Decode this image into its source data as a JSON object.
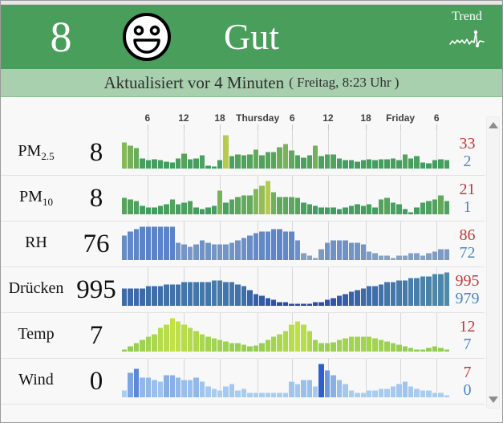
{
  "header": {
    "score": "8",
    "status": "Gut",
    "trend_label": "Trend",
    "bg_color": "#4a9e5c",
    "smiley_icon": "happy-face-icon",
    "trend_icon": "pulse-line-icon"
  },
  "update_bar": {
    "main": "Aktualisiert vor 4 Minuten",
    "detail": "( Freitag, 8:23 Uhr )",
    "bg_color": "#a8cfae"
  },
  "time_axis": {
    "labels": [
      "6",
      "12",
      "18",
      "Thursday",
      "6",
      "12",
      "18",
      "Friday",
      "6"
    ],
    "positions_pct": [
      8.0,
      19.0,
      30.0,
      41.5,
      52.0,
      62.9,
      74.4,
      84.9,
      95.9
    ]
  },
  "colors": {
    "max_text": "#bf3a3a",
    "min_text": "#4a86c6"
  },
  "rows": [
    {
      "key": "pm25",
      "label": "PM",
      "label_sub": "2.5",
      "value": "8",
      "max": "33",
      "min": "2",
      "color_low": "#3f9c60",
      "color_high": "#b6ca52",
      "color_gamma": 2,
      "vmin": 2,
      "vmax": 33,
      "values": [
        26,
        23,
        20,
        10,
        8,
        9,
        8,
        7,
        6,
        10,
        15,
        9,
        10,
        13,
        3,
        2,
        8,
        33,
        12,
        14,
        13,
        14,
        19,
        13,
        16,
        16,
        21,
        24,
        18,
        13,
        11,
        13,
        23,
        12,
        14,
        14,
        10,
        8,
        8,
        7,
        8,
        9,
        8,
        9,
        9,
        10,
        8,
        14,
        10,
        12,
        6,
        5,
        8,
        9,
        8
      ]
    },
    {
      "key": "pm10",
      "label": "PM",
      "label_sub": "10",
      "value": "8",
      "max": "21",
      "min": "1",
      "color_low": "#3f9c60",
      "color_high": "#b6ca52",
      "color_gamma": 2,
      "vmin": 1,
      "vmax": 21,
      "values": [
        10,
        9,
        8,
        5,
        4,
        4,
        5,
        6,
        9,
        6,
        7,
        8,
        4,
        3,
        4,
        5,
        15,
        7,
        9,
        11,
        12,
        12,
        16,
        18,
        21,
        14,
        11,
        11,
        11,
        10,
        7,
        6,
        5,
        4,
        4,
        4,
        3,
        4,
        5,
        6,
        5,
        6,
        4,
        9,
        10,
        7,
        6,
        3,
        1,
        4,
        7,
        8,
        9,
        12,
        8
      ]
    },
    {
      "key": "rh",
      "label": "RH",
      "label_sub": "",
      "value": "76",
      "max": "86",
      "min": "72",
      "color_low": "#8aa4c2",
      "color_high": "#5a83c8",
      "color_gamma": 1,
      "vmin": 72,
      "vmax": 86,
      "values": [
        82,
        84,
        85,
        86,
        86,
        86,
        86,
        86,
        86,
        79,
        78,
        77,
        78,
        80,
        79,
        78,
        78,
        78,
        79,
        80,
        81,
        82,
        83,
        84,
        84,
        85,
        85,
        84,
        84,
        80,
        74,
        73,
        72,
        76,
        79,
        80,
        80,
        80,
        79,
        79,
        78,
        75,
        74,
        73,
        73,
        72,
        73,
        73,
        74,
        74,
        73,
        74,
        75,
        76,
        76
      ]
    },
    {
      "key": "druecken",
      "label": "Drücken",
      "label_sub": "",
      "value": "995",
      "max": "995",
      "min": "979",
      "color_low": "#2a4aa8",
      "color_high": "#4f8aaa",
      "color_gamma": 1,
      "vmin": 979,
      "vmax": 995,
      "values": [
        987,
        987,
        987,
        987,
        988,
        988,
        988,
        989,
        989,
        989,
        990,
        990,
        990,
        990,
        990,
        991,
        991,
        990,
        990,
        989,
        988,
        986,
        984,
        983,
        982,
        981,
        980,
        980,
        979,
        979,
        979,
        979,
        980,
        980,
        981,
        982,
        983,
        984,
        985,
        986,
        987,
        988,
        988,
        989,
        990,
        990,
        991,
        991,
        992,
        992,
        993,
        993,
        994,
        994,
        995
      ]
    },
    {
      "key": "temp",
      "label": "Temp",
      "label_sub": "",
      "value": "7",
      "max": "12",
      "min": "7",
      "color_low": "#8fcc55",
      "color_high": "#c2e147",
      "color_gamma": 1,
      "vmin": 7,
      "vmax": 12,
      "values": [
        7,
        7.5,
        8,
        8.5,
        9,
        9.5,
        10.5,
        11,
        12,
        11.5,
        11,
        10.5,
        10,
        9.5,
        9,
        8.8,
        8.5,
        8.3,
        8,
        8,
        7.8,
        7.5,
        7.7,
        8,
        8.5,
        9,
        9.5,
        10,
        11,
        11.5,
        11,
        10,
        8.5,
        8,
        8,
        8.2,
        8.5,
        8.8,
        9,
        9,
        9,
        9,
        8.8,
        8.5,
        8.3,
        8,
        7.8,
        7.5,
        7.3,
        7,
        7,
        7.2,
        7.5,
        7.3,
        7
      ]
    },
    {
      "key": "wind",
      "label": "Wind",
      "label_sub": "",
      "value": "0",
      "max": "7",
      "min": "0",
      "color_low": "#a9cdf0",
      "color_high": "#2f5fca",
      "color_gamma": 3,
      "vmin": 0,
      "vmax": 7,
      "values": [
        1,
        5,
        6,
        4,
        4,
        3.5,
        3,
        4.5,
        4.5,
        4,
        3.5,
        3.5,
        4,
        3,
        2,
        1.5,
        1,
        2,
        2.5,
        1,
        1.5,
        0.5,
        0.5,
        0.5,
        0.5,
        0.5,
        0.5,
        0.5,
        3,
        2.5,
        3.5,
        3.5,
        2,
        7,
        5.5,
        4.5,
        3.5,
        2.5,
        1,
        0.5,
        0.5,
        1,
        1,
        1.5,
        1.5,
        2,
        2.5,
        3,
        2,
        1.5,
        1,
        1,
        0.5,
        0.5,
        0
      ]
    }
  ],
  "scrollbar": {
    "up_icon": "scroll-up-arrow-icon",
    "down_icon": "scroll-down-arrow-icon"
  }
}
